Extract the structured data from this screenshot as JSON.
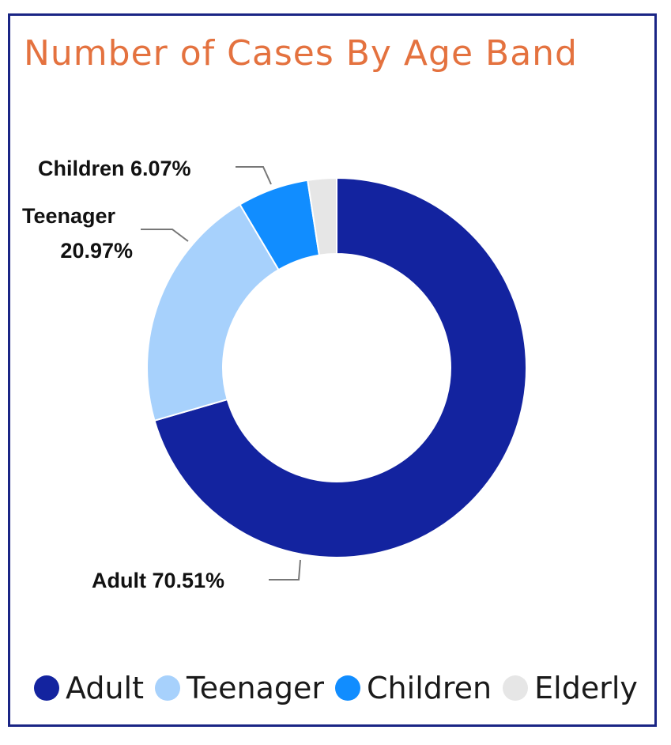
{
  "chart_data": {
    "type": "pie",
    "title": "Number of Cases By Age Band",
    "categories": [
      "Adult",
      "Teenager",
      "Children",
      "Elderly"
    ],
    "values": [
      70.51,
      20.97,
      6.07,
      2.45
    ],
    "colors": [
      "#13239f",
      "#a7d1fc",
      "#118dff",
      "#e6e6e6"
    ],
    "data_labels": {
      "adult": "Adult 70.51%",
      "teenager_line1": "Teenager",
      "teenager_line2": "20.97%",
      "children": "Children 6.07%"
    },
    "legend_position": "bottom"
  }
}
